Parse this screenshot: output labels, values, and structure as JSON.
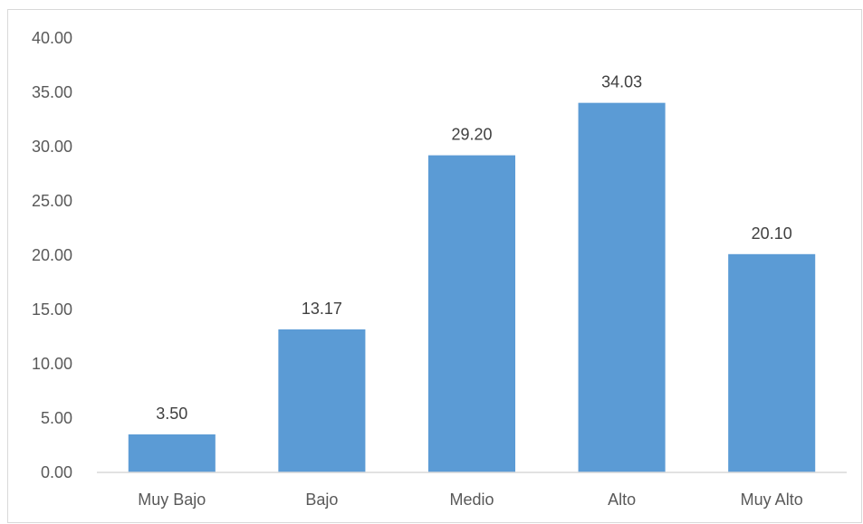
{
  "chart_data": {
    "type": "bar",
    "title": "",
    "xlabel": "",
    "ylabel": "",
    "categories": [
      "Muy Bajo",
      "Bajo",
      "Medio",
      "Alto",
      "Muy Alto"
    ],
    "values": [
      3.5,
      13.17,
      29.2,
      34.03,
      20.1
    ],
    "data_labels": [
      "3.50",
      "13.17",
      "29.20",
      "34.03",
      "20.10"
    ],
    "ylim": [
      0,
      40
    ],
    "yticks": [
      "0.00",
      "5.00",
      "10.00",
      "15.00",
      "20.00",
      "25.00",
      "30.00",
      "35.00",
      "40.00"
    ],
    "grid": false,
    "legend": "none",
    "colors": {
      "bar": "#5b9bd5",
      "axis": "#d9d9d9",
      "text": "#595959"
    }
  }
}
